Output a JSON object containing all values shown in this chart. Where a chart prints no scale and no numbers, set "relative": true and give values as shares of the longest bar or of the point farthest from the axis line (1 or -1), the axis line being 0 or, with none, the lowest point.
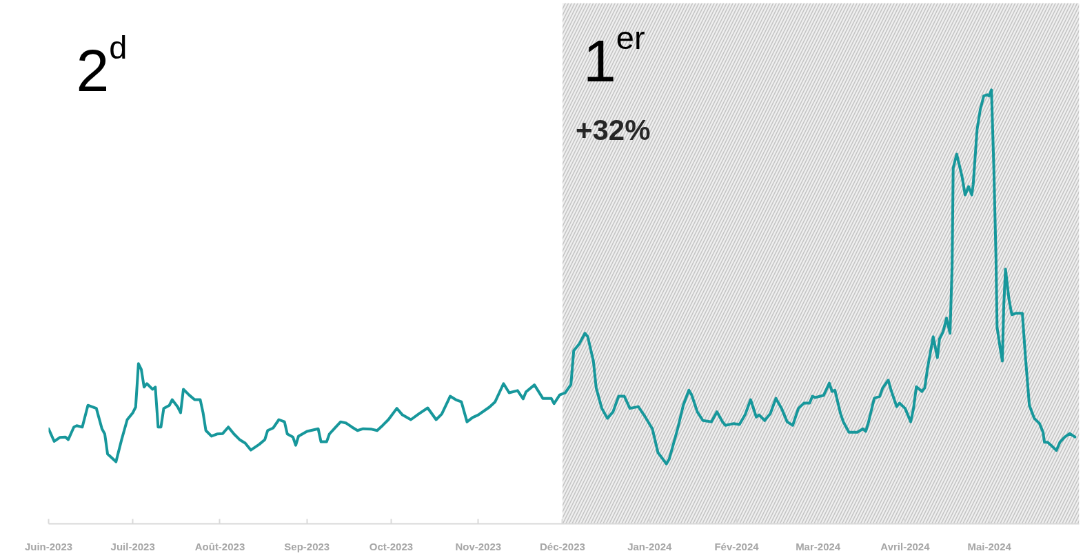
{
  "chart_data": {
    "type": "line",
    "relative": true,
    "x": [
      "2023-06-01",
      "2023-06-03",
      "2023-06-05",
      "2023-06-07",
      "2023-06-08",
      "2023-06-10",
      "2023-06-11",
      "2023-06-13",
      "2023-06-15",
      "2023-06-18",
      "2023-06-20",
      "2023-06-21",
      "2023-06-22",
      "2023-06-25",
      "2023-06-27",
      "2023-06-29",
      "2023-07-01",
      "2023-07-02",
      "2023-07-03",
      "2023-07-04",
      "2023-07-05",
      "2023-07-06",
      "2023-07-08",
      "2023-07-09",
      "2023-07-10",
      "2023-07-11",
      "2023-07-12",
      "2023-07-14",
      "2023-07-15",
      "2023-07-17",
      "2023-07-18",
      "2023-07-19",
      "2023-07-21",
      "2023-07-23",
      "2023-07-25",
      "2023-07-26",
      "2023-07-27",
      "2023-07-29",
      "2023-07-31",
      "2023-08-02",
      "2023-08-04",
      "2023-08-06",
      "2023-08-08",
      "2023-08-10",
      "2023-08-12",
      "2023-08-15",
      "2023-08-17",
      "2023-08-18",
      "2023-08-20",
      "2023-08-22",
      "2023-08-24",
      "2023-08-25",
      "2023-08-27",
      "2023-08-28",
      "2023-08-29",
      "2023-09-01",
      "2023-09-05",
      "2023-09-06",
      "2023-09-08",
      "2023-09-09",
      "2023-09-11",
      "2023-09-13",
      "2023-09-15",
      "2023-09-17",
      "2023-09-19",
      "2023-09-21",
      "2023-09-24",
      "2023-09-26",
      "2023-09-28",
      "2023-09-30",
      "2023-10-03",
      "2023-10-05",
      "2023-10-08",
      "2023-10-11",
      "2023-10-14",
      "2023-10-17",
      "2023-10-19",
      "2023-10-22",
      "2023-10-24",
      "2023-10-26",
      "2023-10-28",
      "2023-10-30",
      "2023-11-01",
      "2023-11-05",
      "2023-11-07",
      "2023-11-10",
      "2023-11-12",
      "2023-11-15",
      "2023-11-17",
      "2023-11-18",
      "2023-11-21",
      "2023-11-24",
      "2023-11-27",
      "2023-11-28",
      "2023-11-30",
      "2023-12-02",
      "2023-12-04",
      "2023-12-05",
      "2023-12-07",
      "2023-12-09",
      "2023-12-10",
      "2023-12-12",
      "2023-12-13",
      "2023-12-15",
      "2023-12-17",
      "2023-12-19",
      "2023-12-21",
      "2023-12-23",
      "2023-12-25",
      "2023-12-28",
      "2023-12-30",
      "2024-01-02",
      "2024-01-04",
      "2024-01-07",
      "2024-01-08",
      "2024-01-11",
      "2024-01-13",
      "2024-01-15",
      "2024-01-16",
      "2024-01-18",
      "2024-01-20",
      "2024-01-23",
      "2024-01-25",
      "2024-01-27",
      "2024-01-28",
      "2024-01-31",
      "2024-02-02",
      "2024-02-04",
      "2024-02-06",
      "2024-02-08",
      "2024-02-09",
      "2024-02-11",
      "2024-02-13",
      "2024-02-15",
      "2024-02-17",
      "2024-02-19",
      "2024-02-21",
      "2024-02-23",
      "2024-02-25",
      "2024-02-27",
      "2024-02-28",
      "2024-02-29",
      "2024-03-03",
      "2024-03-05",
      "2024-03-06",
      "2024-03-07",
      "2024-03-09",
      "2024-03-10",
      "2024-03-12",
      "2024-03-15",
      "2024-03-17",
      "2024-03-18",
      "2024-03-19",
      "2024-03-21",
      "2024-03-23",
      "2024-03-24",
      "2024-03-26",
      "2024-03-27",
      "2024-03-29",
      "2024-03-30",
      "2024-04-01",
      "2024-04-03",
      "2024-04-04",
      "2024-04-05",
      "2024-04-07",
      "2024-04-08",
      "2024-04-09",
      "2024-04-11",
      "2024-04-12T12:00",
      "2024-04-13T06:00",
      "2024-04-14T12:00",
      "2024-04-15T18:00",
      "2024-04-17",
      "2024-04-17T18:00",
      "2024-04-18T03:00",
      "2024-04-19T09:00",
      "2024-04-21T06:00",
      "2024-04-22T09:00",
      "2024-04-23T15:00",
      "2024-04-24T18:00",
      "2024-04-25T06:00",
      "2024-04-26T15:00",
      "2024-04-27T18:00",
      "2024-04-29",
      "2024-04-30T06:00",
      "2024-04-30T21:00",
      "2024-05-01T18:00",
      "2024-05-02T15:00",
      "2024-05-03T09:00",
      "2024-05-03T18:00",
      "2024-05-05",
      "2024-05-05T15:00",
      "2024-05-06T03:00",
      "2024-05-06T18:00",
      "2024-05-08",
      "2024-05-09",
      "2024-05-10T09:00",
      "2024-05-12T18:00",
      "2024-05-13T21:00",
      "2024-05-15T06:00",
      "2024-05-17",
      "2024-05-18T21:00",
      "2024-05-20T03:00",
      "2024-05-20T15:00",
      "2024-05-21T18:00",
      "2024-05-23T03:00",
      "2024-05-24T21:00",
      "2024-05-26T03:00",
      "2024-05-27T21:00",
      "2024-05-29T15:00",
      "2024-05-31T12:00"
    ],
    "series": [
      {
        "color": "#17979b",
        "values": [
          0.219,
          0.19,
          0.199,
          0.2,
          0.194,
          0.223,
          0.226,
          0.223,
          0.273,
          0.266,
          0.219,
          0.207,
          0.161,
          0.143,
          0.194,
          0.24,
          0.256,
          0.269,
          0.369,
          0.356,
          0.315,
          0.323,
          0.31,
          0.315,
          0.223,
          0.223,
          0.266,
          0.273,
          0.286,
          0.269,
          0.256,
          0.31,
          0.297,
          0.286,
          0.286,
          0.256,
          0.215,
          0.202,
          0.207,
          0.208,
          0.223,
          0.207,
          0.194,
          0.186,
          0.17,
          0.183,
          0.194,
          0.215,
          0.221,
          0.24,
          0.235,
          0.207,
          0.2,
          0.181,
          0.202,
          0.213,
          0.219,
          0.189,
          0.189,
          0.207,
          0.221,
          0.235,
          0.232,
          0.223,
          0.215,
          0.219,
          0.218,
          0.215,
          0.227,
          0.24,
          0.266,
          0.251,
          0.24,
          0.254,
          0.267,
          0.24,
          0.253,
          0.294,
          0.286,
          0.281,
          0.235,
          0.245,
          0.251,
          0.269,
          0.281,
          0.323,
          0.302,
          0.307,
          0.288,
          0.304,
          0.32,
          0.289,
          0.289,
          0.277,
          0.297,
          0.302,
          0.321,
          0.399,
          0.415,
          0.439,
          0.431,
          0.375,
          0.313,
          0.266,
          0.243,
          0.258,
          0.294,
          0.294,
          0.266,
          0.27,
          0.251,
          0.219,
          0.164,
          0.138,
          0.149,
          0.219,
          0.273,
          0.308,
          0.297,
          0.258,
          0.238,
          0.235,
          0.258,
          0.235,
          0.227,
          0.231,
          0.229,
          0.251,
          0.286,
          0.246,
          0.251,
          0.238,
          0.254,
          0.289,
          0.266,
          0.235,
          0.227,
          0.266,
          0.278,
          0.278,
          0.294,
          0.291,
          0.296,
          0.324,
          0.305,
          0.308,
          0.254,
          0.235,
          0.211,
          0.211,
          0.219,
          0.213,
          0.235,
          0.289,
          0.294,
          0.313,
          0.331,
          0.308,
          0.27,
          0.278,
          0.266,
          0.235,
          0.266,
          0.316,
          0.305,
          0.313,
          0.359,
          0.431,
          0.383,
          0.426,
          0.442,
          0.474,
          0.439,
          0.595,
          0.82,
          0.852,
          0.801,
          0.758,
          0.777,
          0.758,
          0.782,
          0.908,
          0.954,
          0.986,
          0.989,
          0.986,
          1.0,
          0.814,
          0.61,
          0.453,
          0.399,
          0.375,
          0.501,
          0.587,
          0.517,
          0.482,
          0.485,
          0.485,
          0.383,
          0.273,
          0.243,
          0.231,
          0.211,
          0.188,
          0.188,
          0.18,
          0.169,
          0.188,
          0.2,
          0.208,
          0.2
        ]
      }
    ],
    "xlim": [
      "2023-06-01",
      "2024-06-02"
    ],
    "xticks": [
      {
        "value": "2023-06-01",
        "label": "Juin-2023"
      },
      {
        "value": "2023-07-01",
        "label": "Juil-2023"
      },
      {
        "value": "2023-08-01",
        "label": "Août-2023"
      },
      {
        "value": "2023-09-01",
        "label": "Sep-2023"
      },
      {
        "value": "2023-10-01",
        "label": "Oct-2023"
      },
      {
        "value": "2023-11-01",
        "label": "Nov-2023"
      },
      {
        "value": "2023-12-01",
        "label": "Déc-2023"
      },
      {
        "value": "2024-01-01",
        "label": "Jan-2024"
      },
      {
        "value": "2024-02-01",
        "label": "Fév-2024"
      },
      {
        "value": "2024-03-01",
        "label": "Mar-2024"
      },
      {
        "value": "2024-04-01",
        "label": "Avril-2024"
      },
      {
        "value": "2024-05-01",
        "label": "Mai-2024"
      }
    ],
    "bands": [
      {
        "axis": "x",
        "from": "2023-12-01",
        "to": "2024-06-02",
        "label": "1$^{er}$",
        "color": "#c4c4c4"
      }
    ],
    "annotations": [
      "2$^{d}$",
      "+32%"
    ],
    "grid": false,
    "line_style": "solid"
  }
}
